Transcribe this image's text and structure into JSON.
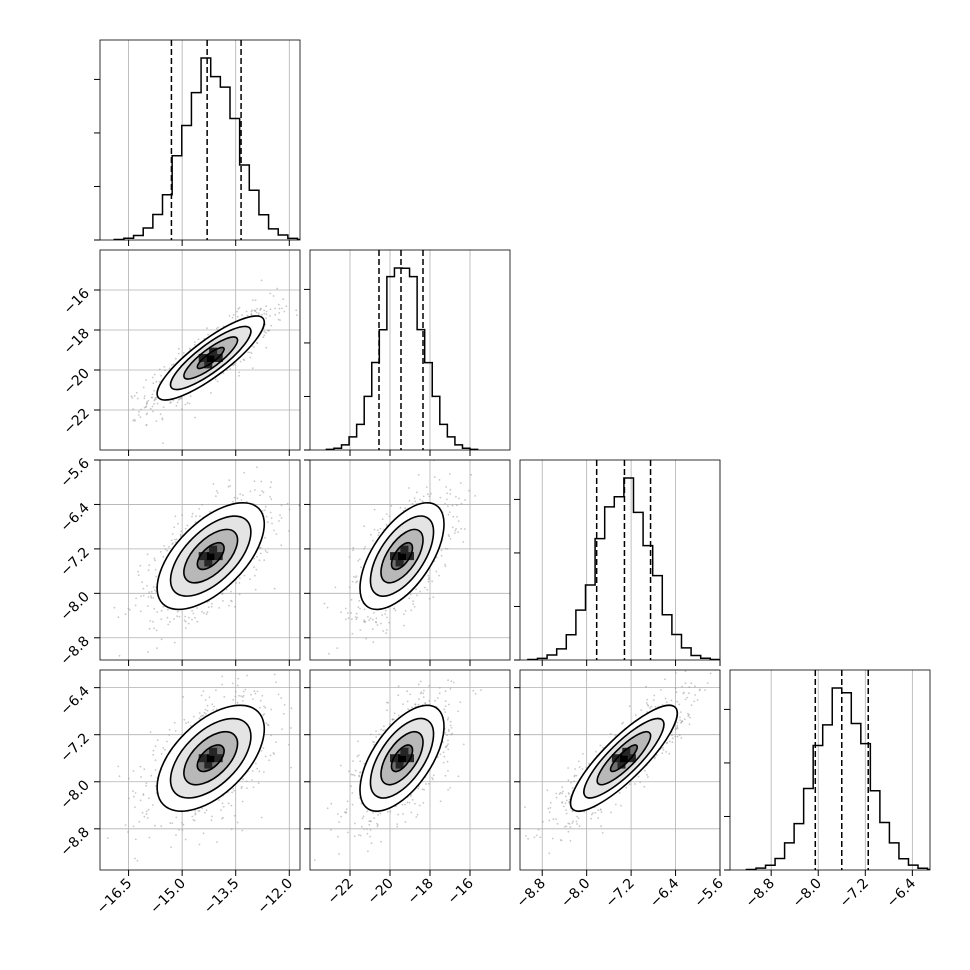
{
  "chart_data": {
    "type": "corner",
    "parameters": [
      {
        "range": [
          -17.3,
          -11.7
        ],
        "ticks": [
          -16.5,
          -15.0,
          -13.5,
          -12.0
        ],
        "tick_labels": [
          "−16.5",
          "−15.0",
          "−13.5",
          "−12.0"
        ],
        "quantiles": [
          -15.3,
          -14.3,
          -13.35
        ],
        "mean": -14.2,
        "sd": 0.75
      },
      {
        "range": [
          -24.0,
          -14.0
        ],
        "ticks": [
          -22,
          -20,
          -18,
          -16
        ],
        "tick_labels": [
          "−22",
          "−20",
          "−18",
          "−16"
        ],
        "quantiles": [
          -20.55,
          -19.45,
          -18.35
        ],
        "mean": -19.4,
        "sd": 1.05
      },
      {
        "range": [
          -9.2,
          -5.6
        ],
        "ticks": [
          -8.8,
          -8.0,
          -7.2,
          -6.4,
          -5.6
        ],
        "tick_labels": [
          "−8.8",
          "−8.0",
          "−7.2",
          "−6.4",
          "−5.6"
        ],
        "quantiles": [
          -7.82,
          -7.32,
          -6.85
        ],
        "mean": -7.33,
        "sd": 0.48
      },
      {
        "range": [
          -9.5,
          -6.1
        ],
        "ticks": [
          -8.8,
          -8.0,
          -7.2,
          -6.4
        ],
        "tick_labels": [
          "−8.8",
          "−8.0",
          "−7.2",
          "−6.4"
        ],
        "quantiles": [
          -8.05,
          -7.6,
          -7.15
        ],
        "mean": -7.6,
        "sd": 0.45
      }
    ],
    "correlations": [
      [
        1,
        0.85,
        0.6,
        0.55
      ],
      [
        0.85,
        1,
        0.6,
        0.6
      ],
      [
        0.6,
        0.6,
        1,
        0.85
      ],
      [
        0.55,
        0.6,
        0.85,
        1
      ]
    ],
    "histogram_bins": 20,
    "contour_levels": [
      0.5,
      1.0,
      1.5,
      2.0
    ],
    "grid": true,
    "xlabel": "",
    "ylabel": ""
  }
}
